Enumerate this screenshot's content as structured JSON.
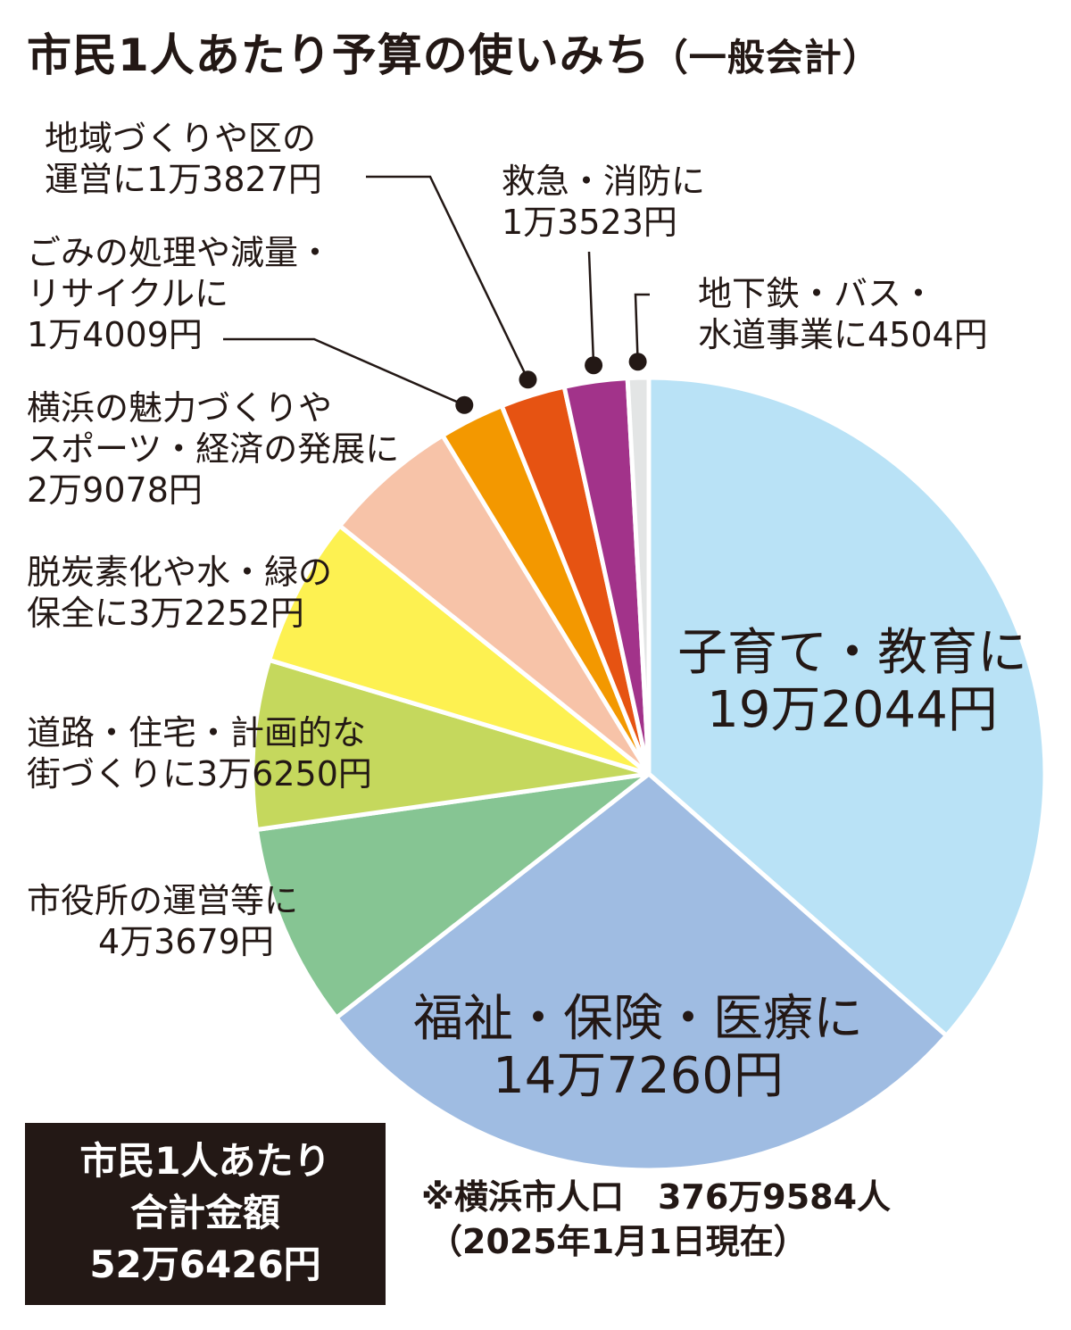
{
  "title": "市民1人あたり予算の使いみち",
  "title_suffix": "（一般会計）",
  "chart_data": {
    "type": "pie",
    "title": "市民1人あたり予算の使いみち（一般会計）",
    "unit": "円",
    "start": "top, clockwise",
    "slices": [
      {
        "label_lines": [
          "子育て・教育に",
          "19万2044円"
        ],
        "value": 192044,
        "color": "#b9e2f6"
      },
      {
        "label_lines": [
          "福祉・保険・医療に",
          "14万7260円"
        ],
        "value": 147260,
        "color": "#9fbce2"
      },
      {
        "label_lines": [
          "市役所の運営等に",
          "4万3679円"
        ],
        "value": 43679,
        "color": "#86c593"
      },
      {
        "label_lines": [
          "道路・住宅・計画的な",
          "街づくりに3万6250円"
        ],
        "value": 36250,
        "color": "#c5d85d"
      },
      {
        "label_lines": [
          "脱炭素化や水・緑の",
          "保全に3万2252円"
        ],
        "value": 32252,
        "color": "#fdf151"
      },
      {
        "label_lines": [
          "横浜の魅力づくりや",
          "スポーツ・経済の発展に",
          "2万9078円"
        ],
        "value": 29078,
        "color": "#f7c3a8"
      },
      {
        "label_lines": [
          "ごみの処理や減量・",
          "リサイクルに",
          "1万4009円"
        ],
        "value": 14009,
        "color": "#f39800"
      },
      {
        "label_lines": [
          "地域づくりや区の",
          "運営に1万3827円"
        ],
        "value": 13827,
        "color": "#e65312"
      },
      {
        "label_lines": [
          "救急・消防に",
          "1万3523円"
        ],
        "value": 13523,
        "color": "#a2338a"
      },
      {
        "label_lines": [
          "地下鉄・バス・",
          "水道事業に4504円"
        ],
        "value": 4504,
        "color": "#e3e5e5"
      }
    ]
  },
  "total": {
    "lines": [
      "市民1人あたり",
      "合計金額",
      "52万6426円"
    ]
  },
  "note": {
    "lines": [
      "※横浜市人口　376万9584人",
      "（2025年1月1日現在）"
    ]
  }
}
